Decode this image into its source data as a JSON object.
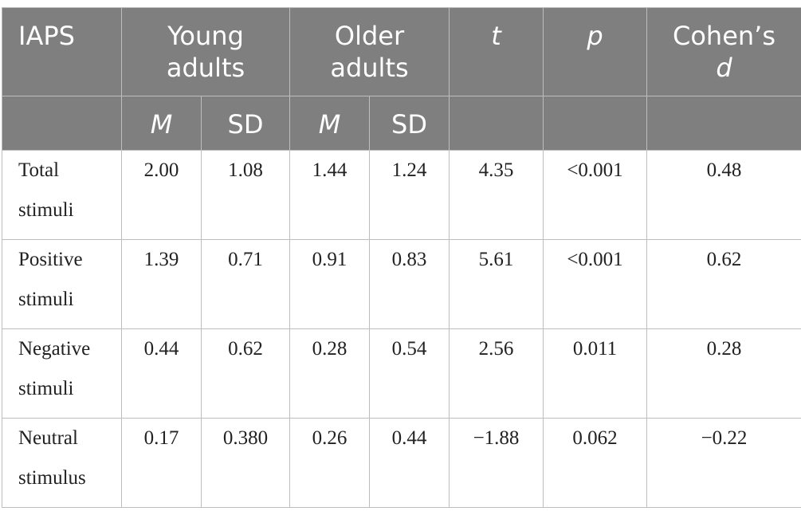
{
  "header": {
    "row1": {
      "iaps": "IAPS",
      "young_line1": "Young",
      "young_line2": "adults",
      "older_line1": "Older",
      "older_line2": "adults",
      "t": "t",
      "p": "p",
      "cohen_line1": "Cohen’s",
      "cohen_line2": "d"
    },
    "row2": {
      "young_m": "M",
      "young_sd": "SD",
      "older_m": "M",
      "older_sd": "SD"
    }
  },
  "rows": [
    {
      "label1": "Total",
      "label2": "stimuli",
      "young_m": "2.00",
      "young_sd": "1.08",
      "older_m": "1.44",
      "older_sd": "1.24",
      "t": "4.35",
      "p": "<0.001",
      "d": "0.48"
    },
    {
      "label1": "Positive",
      "label2": "stimuli",
      "young_m": "1.39",
      "young_sd": "0.71",
      "older_m": "0.91",
      "older_sd": "0.83",
      "t": "5.61",
      "p": "<0.001",
      "d": "0.62"
    },
    {
      "label1": "Negative",
      "label2": "stimuli",
      "young_m": "0.44",
      "young_sd": "0.62",
      "older_m": "0.28",
      "older_sd": "0.54",
      "t": "2.56",
      "p": "0.011",
      "d": "0.28"
    },
    {
      "label1": "Neutral",
      "label2": "stimulus",
      "young_m": "0.17",
      "young_sd": "0.380",
      "older_m": "0.26",
      "older_sd": "0.44",
      "t": "−1.88",
      "p": "0.062",
      "d": "−0.22"
    }
  ],
  "colors": {
    "header_bg": "#7f7f7f",
    "header_text": "#ffffff",
    "grid": "#bdbdbd",
    "body_text": "#222222"
  }
}
